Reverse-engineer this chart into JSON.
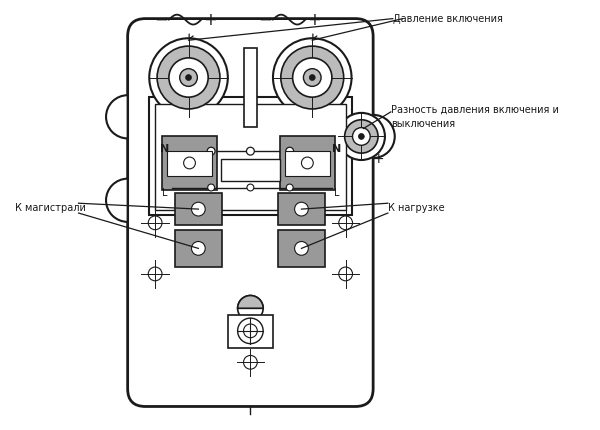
{
  "bg_color": "#ffffff",
  "line_color": "#1a1a1a",
  "gray_fill": "#999999",
  "light_gray": "#bbbbbb",
  "mid_gray": "#888888",
  "text_label1": "Давление включения",
  "text_label2": "Разность давления включения и\nвыключения",
  "text_label3": "К магистрали",
  "text_label4": "К нагрузке",
  "text_fontsize": 7.0
}
